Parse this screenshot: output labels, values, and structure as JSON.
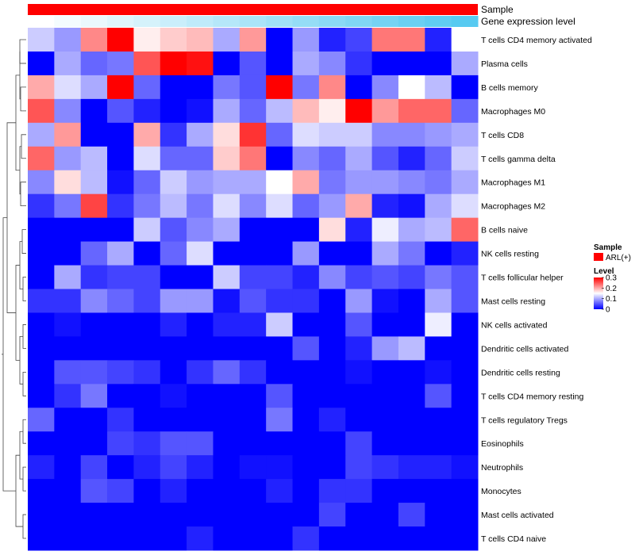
{
  "chart_data": {
    "type": "heatmap",
    "annotation_tracks": [
      "Sample",
      "Gene expression level"
    ],
    "sample_group": "ARL(+)",
    "colors": {
      "low": "#0000ff",
      "mid": "#ffffff",
      "high": "#ff0000",
      "sample_track": "#ff0000",
      "dendrogram": "#444444"
    },
    "level_min": 0,
    "level_max": 0.3,
    "legend": {
      "sample_title": "Sample",
      "sample_label": "ARL(+)",
      "level_title": "Level",
      "ticks": [
        "0.3",
        "0.2",
        "0.1",
        "0"
      ]
    },
    "gene_expression_track": [
      0.0,
      0.06,
      0.12,
      0.18,
      0.24,
      0.3,
      0.36,
      0.42,
      0.48,
      0.54,
      0.6,
      0.66,
      0.72,
      0.78,
      0.84,
      0.9,
      0.95
    ],
    "rows": [
      "T cells CD4 memory activated",
      "Plasma cells",
      "B cells memory",
      "Macrophages M0",
      "T cells CD8",
      "T cells gamma delta",
      "Macrophages M1",
      "Macrophages M2",
      "B cells naive",
      "NK cells resting",
      "T cells follicular helper",
      "Mast cells resting",
      "NK cells activated",
      "Dendritic cells activated",
      "Dendritic cells resting",
      "T cells CD4 memory resting",
      "T cells regulatory  Tregs",
      "Eosinophils",
      "Neutrophils",
      "Monocytes",
      "Mast cells activated",
      "T cells CD4 naive"
    ],
    "values": [
      [
        0.12,
        0.09,
        0.22,
        0.3,
        0.16,
        0.18,
        0.19,
        0.1,
        0.21,
        0.0,
        0.09,
        0.02,
        0.04,
        0.23,
        0.23,
        0.02,
        0.15
      ],
      [
        0.0,
        0.1,
        0.06,
        0.07,
        0.25,
        0.3,
        0.29,
        0.0,
        0.05,
        0.0,
        0.1,
        0.08,
        0.03,
        0.0,
        0.0,
        0.0,
        0.1
      ],
      [
        0.2,
        0.13,
        0.1,
        0.3,
        0.06,
        0.0,
        0.0,
        0.07,
        0.05,
        0.3,
        0.07,
        0.22,
        0.0,
        0.08,
        0.15,
        0.11,
        0.0
      ],
      [
        0.25,
        0.08,
        0.0,
        0.05,
        0.02,
        0.0,
        0.01,
        0.1,
        0.06,
        0.11,
        0.19,
        0.16,
        0.3,
        0.21,
        0.24,
        0.24,
        0.06
      ],
      [
        0.1,
        0.21,
        0.0,
        0.0,
        0.2,
        0.03,
        0.1,
        0.17,
        0.27,
        0.06,
        0.13,
        0.12,
        0.12,
        0.08,
        0.08,
        0.09,
        0.1
      ],
      [
        0.24,
        0.09,
        0.11,
        0.0,
        0.13,
        0.06,
        0.06,
        0.18,
        0.23,
        0.0,
        0.08,
        0.06,
        0.1,
        0.05,
        0.02,
        0.06,
        0.12
      ],
      [
        0.08,
        0.17,
        0.11,
        0.01,
        0.06,
        0.12,
        0.09,
        0.1,
        0.1,
        0.15,
        0.2,
        0.07,
        0.09,
        0.09,
        0.08,
        0.07,
        0.1
      ],
      [
        0.03,
        0.07,
        0.26,
        0.03,
        0.07,
        0.11,
        0.07,
        0.13,
        0.08,
        0.13,
        0.06,
        0.09,
        0.2,
        0.02,
        0.01,
        0.1,
        0.13
      ],
      [
        0.0,
        0.0,
        0.0,
        0.0,
        0.12,
        0.05,
        0.08,
        0.1,
        0.0,
        0.0,
        0.0,
        0.17,
        0.02,
        0.14,
        0.1,
        0.11,
        0.24
      ],
      [
        0.0,
        0.0,
        0.06,
        0.1,
        0.0,
        0.06,
        0.13,
        0.0,
        0.0,
        0.0,
        0.09,
        0.0,
        0.0,
        0.1,
        0.07,
        0.0,
        0.02
      ],
      [
        0.0,
        0.1,
        0.03,
        0.04,
        0.04,
        0.0,
        0.0,
        0.12,
        0.04,
        0.04,
        0.02,
        0.08,
        0.04,
        0.05,
        0.04,
        0.07,
        0.05
      ],
      [
        0.03,
        0.03,
        0.08,
        0.06,
        0.04,
        0.09,
        0.09,
        0.01,
        0.05,
        0.03,
        0.03,
        0.0,
        0.09,
        0.01,
        0.0,
        0.1,
        0.05
      ],
      [
        0.0,
        0.01,
        0.0,
        0.0,
        0.0,
        0.02,
        0.0,
        0.02,
        0.02,
        0.12,
        0.0,
        0.0,
        0.05,
        0.0,
        0.0,
        0.14,
        0.0
      ],
      [
        0.0,
        0.0,
        0.0,
        0.0,
        0.0,
        0.0,
        0.0,
        0.0,
        0.0,
        0.0,
        0.05,
        0.0,
        0.02,
        0.09,
        0.11,
        0.0,
        0.0
      ],
      [
        0.0,
        0.05,
        0.05,
        0.04,
        0.03,
        0.0,
        0.03,
        0.06,
        0.03,
        0.0,
        0.0,
        0.0,
        0.01,
        0.0,
        0.0,
        0.01,
        0.0
      ],
      [
        0.0,
        0.03,
        0.07,
        0.0,
        0.0,
        0.01,
        0.0,
        0.0,
        0.0,
        0.05,
        0.0,
        0.0,
        0.0,
        0.0,
        0.0,
        0.05,
        0.0
      ],
      [
        0.06,
        0.0,
        0.0,
        0.03,
        0.0,
        0.0,
        0.0,
        0.0,
        0.0,
        0.07,
        0.0,
        0.02,
        0.0,
        0.0,
        0.0,
        0.0,
        0.0
      ],
      [
        0.0,
        0.0,
        0.0,
        0.04,
        0.03,
        0.05,
        0.05,
        0.0,
        0.0,
        0.0,
        0.0,
        0.0,
        0.04,
        0.0,
        0.0,
        0.0,
        0.0
      ],
      [
        0.02,
        0.0,
        0.04,
        0.0,
        0.02,
        0.04,
        0.02,
        0.0,
        0.01,
        0.01,
        0.0,
        0.0,
        0.04,
        0.03,
        0.02,
        0.02,
        0.01
      ],
      [
        0.0,
        0.0,
        0.05,
        0.04,
        0.0,
        0.02,
        0.0,
        0.0,
        0.0,
        0.02,
        0.0,
        0.03,
        0.03,
        0.0,
        0.0,
        0.0,
        0.0
      ],
      [
        0.0,
        0.0,
        0.0,
        0.0,
        0.0,
        0.0,
        0.0,
        0.0,
        0.0,
        0.0,
        0.0,
        0.04,
        0.0,
        0.0,
        0.04,
        0.0,
        0.0
      ],
      [
        0.0,
        0.0,
        0.0,
        0.0,
        0.0,
        0.0,
        0.02,
        0.0,
        0.0,
        0.0,
        0.03,
        0.0,
        0.0,
        0.0,
        0.0,
        0.0,
        0.0
      ]
    ]
  }
}
